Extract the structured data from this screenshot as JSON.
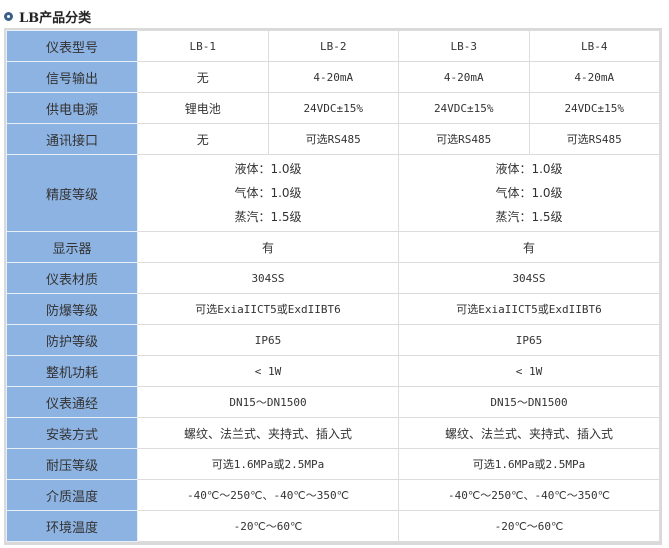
{
  "title": "LB产品分类",
  "colors": {
    "label_bg": "#8db3e2",
    "bullet": "#3b5f87"
  },
  "rows": [
    {
      "label": "仪表型号",
      "cells": [
        {
          "text": "LB-1"
        },
        {
          "text": "LB-2"
        },
        {
          "text": "LB-3"
        },
        {
          "text": "LB-4"
        }
      ]
    },
    {
      "label": "信号输出",
      "cells": [
        {
          "text": "无"
        },
        {
          "text": "4-20mA"
        },
        {
          "text": "4-20mA"
        },
        {
          "text": "4-20mA"
        }
      ]
    },
    {
      "label": "供电电源",
      "cells": [
        {
          "text": "锂电池"
        },
        {
          "text": "24VDC±15%"
        },
        {
          "text": "24VDC±15%"
        },
        {
          "text": "24VDC±15%"
        }
      ]
    },
    {
      "label": "通讯接口",
      "cells": [
        {
          "text": "无"
        },
        {
          "text": "可选RS485"
        },
        {
          "text": "可选RS485"
        },
        {
          "text": "可选RS485"
        }
      ]
    },
    {
      "label": "精度等级",
      "cells": [
        {
          "lines": [
            "液体：1.0级",
            "气体：1.0级",
            "蒸汽：1.5级"
          ],
          "span": 2
        },
        {
          "lines": [
            "液体：1.0级",
            "气体：1.0级",
            "蒸汽：1.5级"
          ],
          "span": 2
        }
      ]
    },
    {
      "label": "显示器",
      "cells": [
        {
          "text": "有",
          "span": 2
        },
        {
          "text": "有",
          "span": 2
        }
      ]
    },
    {
      "label": "仪表材质",
      "cells": [
        {
          "text": "304SS",
          "span": 2
        },
        {
          "text": "304SS",
          "span": 2
        }
      ]
    },
    {
      "label": "防爆等级",
      "cells": [
        {
          "text": "可选ExiaIICT5或ExdIIBT6",
          "span": 2
        },
        {
          "text": "可选ExiaIICT5或ExdIIBT6",
          "span": 2
        }
      ]
    },
    {
      "label": "防护等级",
      "cells": [
        {
          "text": "IP65",
          "span": 2
        },
        {
          "text": "IP65",
          "span": 2
        }
      ]
    },
    {
      "label": "整机功耗",
      "cells": [
        {
          "text": "< 1W",
          "span": 2
        },
        {
          "text": "< 1W",
          "span": 2
        }
      ]
    },
    {
      "label": "仪表通经",
      "cells": [
        {
          "text": "DN15～DN1500",
          "span": 2
        },
        {
          "text": "DN15～DN1500",
          "span": 2
        }
      ]
    },
    {
      "label": "安装方式",
      "cells": [
        {
          "text": "螺纹、法兰式、夹持式、插入式",
          "span": 2
        },
        {
          "text": "螺纹、法兰式、夹持式、插入式",
          "span": 2
        }
      ]
    },
    {
      "label": "耐压等级",
      "cells": [
        {
          "text": "可选1.6MPa或2.5MPa",
          "span": 2
        },
        {
          "text": "可选1.6MPa或2.5MPa",
          "span": 2
        }
      ]
    },
    {
      "label": "介质温度",
      "cells": [
        {
          "text": "-40℃～250℃、-40℃～350℃",
          "span": 2
        },
        {
          "text": "-40℃～250℃、-40℃～350℃",
          "span": 2
        }
      ]
    },
    {
      "label": "环境温度",
      "cells": [
        {
          "text": "-20℃～60℃",
          "span": 2
        },
        {
          "text": "-20℃～60℃",
          "span": 2
        }
      ]
    }
  ]
}
